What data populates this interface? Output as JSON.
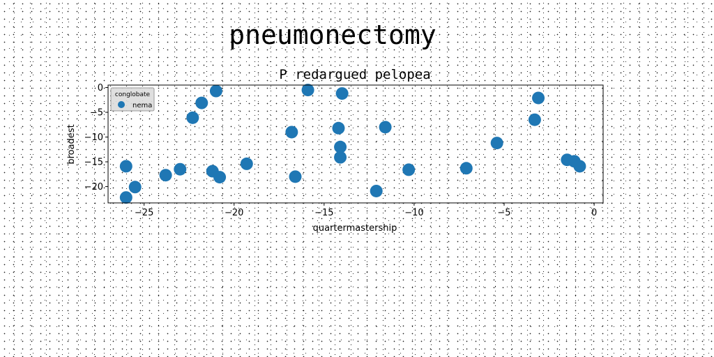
{
  "figure": {
    "suptitle": "pneumonectomy"
  },
  "chart_data": {
    "type": "scatter",
    "title": "P redargued pelopea",
    "xlabel": "quartermastership",
    "ylabel": "broadest",
    "xlim": [
      -27.0,
      0.5
    ],
    "ylim": [
      -23.3,
      0.5
    ],
    "xticks": [
      -25,
      -20,
      -15,
      -10,
      -5,
      0
    ],
    "yticks": [
      0,
      -5,
      -10,
      -15,
      -20
    ],
    "grid": false,
    "legend": {
      "title": "conglobate",
      "placement": "top-left"
    },
    "colors": {
      "series": "#1f77b4"
    },
    "series": [
      {
        "name": "nema",
        "points": [
          [
            -26.0,
            -15.9
          ],
          [
            -26.0,
            -22.2
          ],
          [
            -25.5,
            -20.1
          ],
          [
            -23.8,
            -17.7
          ],
          [
            -23.0,
            -16.5
          ],
          [
            -22.3,
            -6.1
          ],
          [
            -21.8,
            -3.1
          ],
          [
            -21.2,
            -16.9
          ],
          [
            -21.0,
            -0.7
          ],
          [
            -20.8,
            -18.1
          ],
          [
            -19.3,
            -15.4
          ],
          [
            -16.8,
            -9.0
          ],
          [
            -16.6,
            -18.0
          ],
          [
            -15.9,
            -0.5
          ],
          [
            -14.2,
            -8.2
          ],
          [
            -14.1,
            -12.0
          ],
          [
            -14.1,
            -14.1
          ],
          [
            -14.0,
            -1.2
          ],
          [
            -12.1,
            -20.9
          ],
          [
            -11.6,
            -8.0
          ],
          [
            -10.3,
            -16.6
          ],
          [
            -7.1,
            -16.3
          ],
          [
            -5.4,
            -11.2
          ],
          [
            -3.3,
            -6.5
          ],
          [
            -3.1,
            -2.1
          ],
          [
            -1.5,
            -14.6
          ],
          [
            -1.1,
            -14.9
          ],
          [
            -0.8,
            -15.9
          ]
        ]
      }
    ]
  }
}
